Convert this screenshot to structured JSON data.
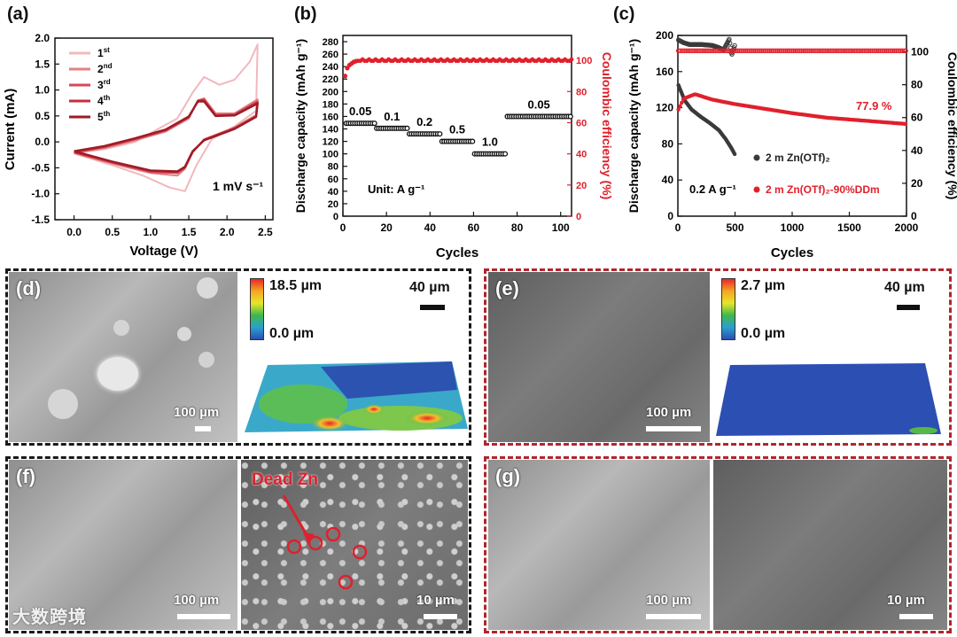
{
  "chart_data": [
    {
      "panel": "(a)",
      "type": "line",
      "xlabel": "Voltage (V)",
      "ylabel": "Current (mA)",
      "xlim": [
        -0.25,
        2.6
      ],
      "ylim": [
        -1.5,
        2.0
      ],
      "xticks": [
        "0.0",
        "0.5",
        "1.0",
        "1.5",
        "2.0",
        "2.5"
      ],
      "yticks": [
        "-1.5",
        "-1.0",
        "-0.5",
        "0.0",
        "0.5",
        "1.0",
        "1.5",
        "2.0"
      ],
      "xtick_values": [
        0,
        0.5,
        1.0,
        1.5,
        2.0,
        2.5
      ],
      "ytick_values": [
        -1.5,
        -1.0,
        -0.5,
        0,
        0.5,
        1.0,
        1.5,
        2.0
      ],
      "annotation": "1 mV s⁻¹",
      "series": [
        {
          "name": "1",
          "sup": "st",
          "color": "#f2b8bd",
          "width": 2,
          "forward": [
            [
              0,
              -0.22
            ],
            [
              0.4,
              -0.14
            ],
            [
              0.8,
              0.0
            ],
            [
              1.1,
              0.25
            ],
            [
              1.35,
              0.45
            ],
            [
              1.55,
              0.95
            ],
            [
              1.7,
              1.25
            ],
            [
              1.9,
              1.1
            ],
            [
              2.1,
              1.2
            ],
            [
              2.3,
              1.55
            ],
            [
              2.4,
              1.88
            ]
          ],
          "back": [
            [
              2.4,
              1.88
            ],
            [
              2.38,
              0.6
            ],
            [
              2.1,
              0.3
            ],
            [
              1.8,
              0.05
            ],
            [
              1.6,
              -0.45
            ],
            [
              1.45,
              -0.95
            ],
            [
              1.25,
              -0.88
            ],
            [
              0.9,
              -0.65
            ],
            [
              0.5,
              -0.45
            ],
            [
              0,
              -0.22
            ]
          ]
        },
        {
          "name": "2",
          "sup": "nd",
          "color": "#e47f87",
          "width": 2,
          "forward": [
            [
              0,
              -0.22
            ],
            [
              0.4,
              -0.12
            ],
            [
              0.8,
              0.03
            ],
            [
              1.2,
              0.2
            ],
            [
              1.5,
              0.45
            ],
            [
              1.62,
              0.8
            ],
            [
              1.7,
              0.84
            ],
            [
              1.85,
              0.55
            ],
            [
              2.1,
              0.55
            ],
            [
              2.4,
              0.82
            ]
          ],
          "back": [
            [
              2.4,
              0.82
            ],
            [
              2.38,
              0.52
            ],
            [
              2.1,
              0.28
            ],
            [
              1.7,
              0.05
            ],
            [
              1.55,
              -0.2
            ],
            [
              1.45,
              -0.52
            ],
            [
              1.35,
              -0.65
            ],
            [
              1.0,
              -0.6
            ],
            [
              0.5,
              -0.42
            ],
            [
              0,
              -0.22
            ]
          ]
        },
        {
          "name": "3",
          "sup": "rd",
          "color": "#d44b56",
          "width": 2.2,
          "forward": [
            [
              0,
              -0.2
            ],
            [
              0.4,
              -0.1
            ],
            [
              0.8,
              0.05
            ],
            [
              1.2,
              0.22
            ],
            [
              1.5,
              0.47
            ],
            [
              1.62,
              0.8
            ],
            [
              1.7,
              0.82
            ],
            [
              1.85,
              0.52
            ],
            [
              2.1,
              0.53
            ],
            [
              2.4,
              0.78
            ]
          ],
          "back": [
            [
              2.4,
              0.78
            ],
            [
              2.38,
              0.5
            ],
            [
              2.1,
              0.27
            ],
            [
              1.7,
              0.04
            ],
            [
              1.55,
              -0.2
            ],
            [
              1.45,
              -0.5
            ],
            [
              1.35,
              -0.6
            ],
            [
              1.0,
              -0.58
            ],
            [
              0.5,
              -0.4
            ],
            [
              0,
              -0.2
            ]
          ]
        },
        {
          "name": "4",
          "sup": "th",
          "color": "#c0313d",
          "width": 2.2,
          "forward": [
            [
              0,
              -0.19
            ],
            [
              0.4,
              -0.09
            ],
            [
              0.8,
              0.06
            ],
            [
              1.2,
              0.23
            ],
            [
              1.5,
              0.48
            ],
            [
              1.62,
              0.79
            ],
            [
              1.7,
              0.8
            ],
            [
              1.85,
              0.51
            ],
            [
              2.1,
              0.52
            ],
            [
              2.4,
              0.76
            ]
          ],
          "back": [
            [
              2.4,
              0.76
            ],
            [
              2.38,
              0.49
            ],
            [
              2.1,
              0.26
            ],
            [
              1.7,
              0.04
            ],
            [
              1.55,
              -0.19
            ],
            [
              1.45,
              -0.49
            ],
            [
              1.35,
              -0.58
            ],
            [
              1.0,
              -0.56
            ],
            [
              0.5,
              -0.39
            ],
            [
              0,
              -0.19
            ]
          ]
        },
        {
          "name": "5",
          "sup": "th",
          "color": "#9e1b26",
          "width": 2.4,
          "forward": [
            [
              0,
              -0.18
            ],
            [
              0.4,
              -0.08
            ],
            [
              0.8,
              0.07
            ],
            [
              1.2,
              0.24
            ],
            [
              1.5,
              0.49
            ],
            [
              1.62,
              0.78
            ],
            [
              1.7,
              0.78
            ],
            [
              1.85,
              0.5
            ],
            [
              2.1,
              0.51
            ],
            [
              2.4,
              0.74
            ]
          ],
          "back": [
            [
              2.4,
              0.74
            ],
            [
              2.38,
              0.48
            ],
            [
              2.1,
              0.25
            ],
            [
              1.7,
              0.03
            ],
            [
              1.55,
              -0.18
            ],
            [
              1.45,
              -0.48
            ],
            [
              1.35,
              -0.57
            ],
            [
              1.0,
              -0.55
            ],
            [
              0.5,
              -0.38
            ],
            [
              0,
              -0.18
            ]
          ]
        }
      ]
    },
    {
      "panel": "(b)",
      "type": "scatter",
      "xlabel": "Cycles",
      "ylabel": "Discharge capacity (mAh g⁻¹)",
      "y2label": "Coulombic efficiency (%)",
      "xlim": [
        0,
        105
      ],
      "ylim": [
        0,
        290
      ],
      "y2lim": [
        0,
        116
      ],
      "xticks": [
        "0",
        "20",
        "40",
        "60",
        "80",
        "100"
      ],
      "xtick_values": [
        0,
        20,
        40,
        60,
        80,
        100
      ],
      "yticks": [
        "0",
        "20",
        "40",
        "60",
        "80",
        "100",
        "120",
        "140",
        "160",
        "180",
        "200",
        "220",
        "240",
        "260",
        "280"
      ],
      "ytick_values": [
        0,
        20,
        40,
        60,
        80,
        100,
        120,
        140,
        160,
        180,
        200,
        220,
        240,
        260,
        280
      ],
      "y2ticks": [
        "0",
        "20",
        "40",
        "60",
        "80",
        "100"
      ],
      "y2tick_values": [
        0,
        20,
        40,
        60,
        80,
        100
      ],
      "annotation": "Unit: A g⁻¹",
      "capacity_segments": [
        {
          "rate": "0.05",
          "x": [
            1,
            15
          ],
          "y": 149
        },
        {
          "rate": "0.1",
          "x": [
            15,
            30
          ],
          "y": 141
        },
        {
          "rate": "0.2",
          "x": [
            30,
            45
          ],
          "y": 132
        },
        {
          "rate": "0.5",
          "x": [
            45,
            60
          ],
          "y": 120
        },
        {
          "rate": "1.0",
          "x": [
            60,
            75
          ],
          "y": 100
        },
        {
          "rate": "0.05",
          "x": [
            75,
            105
          ],
          "y": 160
        }
      ],
      "ce_start": [
        [
          1,
          90
        ],
        [
          2,
          95
        ],
        [
          3,
          97
        ],
        [
          4,
          98
        ],
        [
          5,
          99
        ],
        [
          6,
          99.5
        ]
      ],
      "ce_plateau": 100,
      "colors": {
        "capacity": "#111111",
        "ce": "#e0202c"
      }
    },
    {
      "panel": "(c)",
      "type": "scatter",
      "xlabel": "Cycles",
      "ylabel": "Discharge capacity (mAh g⁻¹)",
      "y2label": "Coulombic efficiency (%)",
      "xlim": [
        0,
        2000
      ],
      "ylim": [
        0,
        200
      ],
      "y2lim": [
        0,
        110
      ],
      "xticks": [
        "0",
        "500",
        "1000",
        "1500",
        "2000"
      ],
      "xtick_values": [
        0,
        500,
        1000,
        1500,
        2000
      ],
      "yticks": [
        "0",
        "40",
        "80",
        "120",
        "160",
        "200"
      ],
      "ytick_values": [
        0,
        40,
        80,
        120,
        160,
        200
      ],
      "y2ticks": [
        "0",
        "20",
        "40",
        "60",
        "80",
        "100"
      ],
      "y2tick_values": [
        0,
        20,
        40,
        60,
        80,
        100
      ],
      "annotation": "0.2 A g⁻¹",
      "retention": "77.9 %",
      "series": [
        {
          "name": "2 m Zn(OTf)₂",
          "color": "#3a3a3a",
          "capacity": [
            [
              5,
              145
            ],
            [
              60,
              128
            ],
            [
              120,
              118
            ],
            [
              200,
              110
            ],
            [
              280,
              103
            ],
            [
              360,
              95
            ],
            [
              420,
              85
            ],
            [
              470,
              75
            ],
            [
              500,
              68
            ]
          ],
          "ce": [
            [
              5,
              195
            ],
            [
              50,
              192
            ],
            [
              100,
              190
            ],
            [
              200,
              190
            ],
            [
              300,
              189
            ],
            [
              350,
              187
            ],
            [
              400,
              184
            ],
            [
              450,
              196
            ],
            [
              470,
              178
            ],
            [
              490,
              186
            ],
            [
              500,
              190
            ]
          ]
        },
        {
          "name": "2 m Zn(OTf)₂-90%DDm",
          "color": "#e0202c",
          "capacity": [
            [
              5,
              118
            ],
            [
              50,
              130
            ],
            [
              150,
              135
            ],
            [
              300,
              129
            ],
            [
              500,
              124
            ],
            [
              700,
              120
            ],
            [
              1000,
              114
            ],
            [
              1300,
              109
            ],
            [
              1600,
              106
            ],
            [
              1800,
              104
            ],
            [
              2000,
              102
            ]
          ],
          "ce": [
            [
              5,
              183
            ],
            [
              2000,
              183
            ]
          ]
        }
      ]
    }
  ],
  "panels": {
    "d": {
      "label": "(d)",
      "scale_sem": "100 µm",
      "cb_max": "18.5 µm",
      "cb_min": "0.0 µm",
      "scale_3d": "40 µm"
    },
    "e": {
      "label": "(e)",
      "scale_sem": "100 µm",
      "cb_max": "2.7 µm",
      "cb_min": "0.0 µm",
      "scale_3d": "40 µm"
    },
    "f": {
      "label": "(f)",
      "scale_left": "100 µm",
      "scale_right": "10 µm",
      "annotation": "Dead Zn"
    },
    "g": {
      "label": "(g)",
      "scale_left": "100 µm",
      "scale_right": "10 µm"
    }
  },
  "watermark": "大数跨境",
  "colors": {
    "accent_red": "#e0202c",
    "frame_dark": "#1a1a1a",
    "frame_red": "#b1262d"
  }
}
